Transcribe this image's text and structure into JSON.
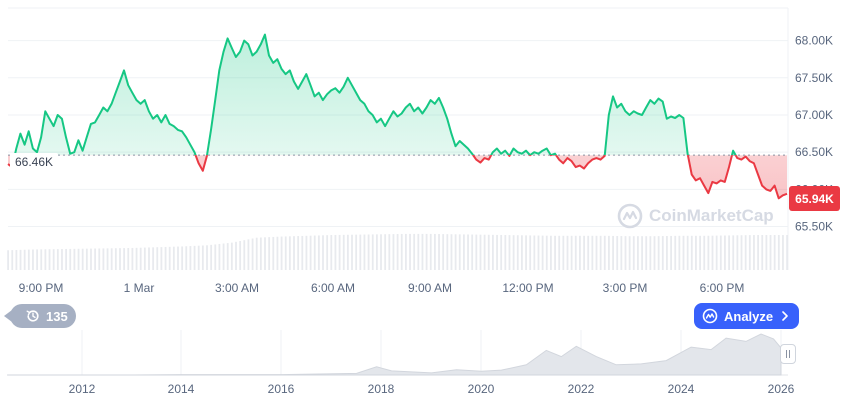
{
  "chart_data": {
    "type": "line",
    "x_tick_labels": [
      "9:00 PM",
      "1 Mar",
      "3:00 AM",
      "6:00 AM",
      "9:00 AM",
      "12:00 PM",
      "3:00 PM",
      "6:00 PM"
    ],
    "y_tick_labels": [
      "68.00K",
      "67.50K",
      "67.00K",
      "66.50K",
      "66.00K",
      "65.50K"
    ],
    "ylim": [
      65.4,
      68.25
    ],
    "reference_value": 66.46,
    "reference_label": "66.46K",
    "last_value_label": "65.94K",
    "colors": {
      "above": "#16c784",
      "below": "#ea3943",
      "volume": "#e8eaee",
      "grid": "#eff2f5"
    },
    "price": [
      [
        0,
        66.34
      ],
      [
        2,
        66.3
      ],
      [
        4,
        66.55
      ],
      [
        6,
        66.75
      ],
      [
        8,
        66.6
      ],
      [
        10,
        66.78
      ],
      [
        12,
        66.55
      ],
      [
        14,
        66.5
      ],
      [
        16,
        66.7
      ],
      [
        18,
        67.05
      ],
      [
        20,
        66.95
      ],
      [
        22,
        66.85
      ],
      [
        24,
        67.0
      ],
      [
        26,
        66.95
      ],
      [
        28,
        66.7
      ],
      [
        30,
        66.48
      ],
      [
        32,
        66.5
      ],
      [
        34,
        66.66
      ],
      [
        36,
        66.52
      ],
      [
        38,
        66.7
      ],
      [
        40,
        66.88
      ],
      [
        42,
        66.9
      ],
      [
        44,
        67.0
      ],
      [
        46,
        67.1
      ],
      [
        48,
        67.05
      ],
      [
        50,
        67.15
      ],
      [
        52,
        67.3
      ],
      [
        54,
        67.45
      ],
      [
        56,
        67.6
      ],
      [
        58,
        67.4
      ],
      [
        60,
        67.3
      ],
      [
        62,
        67.2
      ],
      [
        64,
        67.15
      ],
      [
        66,
        67.2
      ],
      [
        68,
        67.05
      ],
      [
        70,
        66.95
      ],
      [
        72,
        67.0
      ],
      [
        74,
        66.9
      ],
      [
        76,
        67.0
      ],
      [
        78,
        66.88
      ],
      [
        80,
        66.85
      ],
      [
        82,
        66.8
      ],
      [
        84,
        66.78
      ],
      [
        86,
        66.7
      ],
      [
        88,
        66.6
      ],
      [
        90,
        66.5
      ],
      [
        92,
        66.35
      ],
      [
        94,
        66.25
      ],
      [
        96,
        66.45
      ],
      [
        98,
        66.8
      ],
      [
        100,
        67.2
      ],
      [
        102,
        67.6
      ],
      [
        104,
        67.85
      ],
      [
        106,
        68.03
      ],
      [
        108,
        67.9
      ],
      [
        110,
        67.78
      ],
      [
        112,
        67.85
      ],
      [
        114,
        68.0
      ],
      [
        116,
        67.95
      ],
      [
        118,
        67.8
      ],
      [
        120,
        67.85
      ],
      [
        122,
        67.95
      ],
      [
        124,
        68.08
      ],
      [
        126,
        67.8
      ],
      [
        128,
        67.7
      ],
      [
        130,
        67.75
      ],
      [
        132,
        67.62
      ],
      [
        134,
        67.55
      ],
      [
        136,
        67.6
      ],
      [
        138,
        67.45
      ],
      [
        140,
        67.35
      ],
      [
        142,
        67.45
      ],
      [
        144,
        67.55
      ],
      [
        146,
        67.4
      ],
      [
        148,
        67.25
      ],
      [
        150,
        67.3
      ],
      [
        152,
        67.2
      ],
      [
        154,
        67.28
      ],
      [
        156,
        67.33
      ],
      [
        158,
        67.36
      ],
      [
        160,
        67.3
      ],
      [
        162,
        67.38
      ],
      [
        164,
        67.5
      ],
      [
        166,
        67.4
      ],
      [
        168,
        67.3
      ],
      [
        170,
        67.2
      ],
      [
        172,
        67.15
      ],
      [
        174,
        67.05
      ],
      [
        176,
        67.0
      ],
      [
        178,
        66.9
      ],
      [
        180,
        66.95
      ],
      [
        182,
        66.85
      ],
      [
        184,
        66.95
      ],
      [
        186,
        67.05
      ],
      [
        188,
        66.98
      ],
      [
        190,
        67.02
      ],
      [
        192,
        67.1
      ],
      [
        194,
        67.15
      ],
      [
        196,
        67.05
      ],
      [
        198,
        67.1
      ],
      [
        200,
        67.02
      ],
      [
        202,
        67.1
      ],
      [
        204,
        67.2
      ],
      [
        206,
        67.15
      ],
      [
        208,
        67.23
      ],
      [
        210,
        67.1
      ],
      [
        212,
        66.95
      ],
      [
        214,
        66.75
      ],
      [
        216,
        66.58
      ],
      [
        218,
        66.65
      ],
      [
        220,
        66.6
      ],
      [
        222,
        66.55
      ],
      [
        224,
        66.48
      ],
      [
        226,
        66.4
      ],
      [
        228,
        66.36
      ],
      [
        230,
        66.42
      ],
      [
        232,
        66.4
      ],
      [
        234,
        66.5
      ],
      [
        236,
        66.55
      ],
      [
        238,
        66.48
      ],
      [
        240,
        66.52
      ],
      [
        242,
        66.45
      ],
      [
        244,
        66.55
      ],
      [
        246,
        66.5
      ],
      [
        248,
        66.48
      ],
      [
        250,
        66.52
      ],
      [
        252,
        66.46
      ],
      [
        254,
        66.5
      ],
      [
        256,
        66.48
      ],
      [
        258,
        66.52
      ],
      [
        260,
        66.55
      ],
      [
        262,
        66.46
      ],
      [
        264,
        66.48
      ],
      [
        266,
        66.4
      ],
      [
        268,
        66.35
      ],
      [
        270,
        66.42
      ],
      [
        272,
        66.38
      ],
      [
        274,
        66.3
      ],
      [
        276,
        66.32
      ],
      [
        278,
        66.28
      ],
      [
        280,
        66.35
      ],
      [
        282,
        66.4
      ],
      [
        284,
        66.42
      ],
      [
        286,
        66.4
      ],
      [
        288,
        66.45
      ],
      [
        290,
        67.0
      ],
      [
        292,
        67.25
      ],
      [
        294,
        67.1
      ],
      [
        296,
        67.15
      ],
      [
        298,
        67.05
      ],
      [
        300,
        67.0
      ],
      [
        302,
        67.05
      ],
      [
        304,
        67.02
      ],
      [
        306,
        67.0
      ],
      [
        308,
        67.1
      ],
      [
        310,
        67.2
      ],
      [
        312,
        67.15
      ],
      [
        314,
        67.22
      ],
      [
        316,
        67.18
      ],
      [
        318,
        66.95
      ],
      [
        320,
        66.98
      ],
      [
        322,
        66.96
      ],
      [
        324,
        67.0
      ],
      [
        326,
        66.96
      ],
      [
        328,
        66.48
      ],
      [
        330,
        66.2
      ],
      [
        332,
        66.12
      ],
      [
        334,
        66.15
      ],
      [
        336,
        66.05
      ],
      [
        338,
        65.95
      ],
      [
        340,
        66.1
      ],
      [
        342,
        66.08
      ],
      [
        344,
        66.12
      ],
      [
        346,
        66.1
      ],
      [
        348,
        66.3
      ],
      [
        350,
        66.52
      ],
      [
        352,
        66.42
      ],
      [
        354,
        66.4
      ],
      [
        356,
        66.44
      ],
      [
        358,
        66.38
      ],
      [
        360,
        66.35
      ],
      [
        362,
        66.2
      ],
      [
        364,
        66.05
      ],
      [
        366,
        66.0
      ],
      [
        368,
        65.98
      ],
      [
        370,
        66.05
      ],
      [
        372,
        65.88
      ],
      [
        374,
        65.92
      ],
      [
        376,
        65.94
      ]
    ],
    "volume": [
      [
        0,
        0.52
      ],
      [
        12,
        0.54
      ],
      [
        24,
        0.55
      ],
      [
        36,
        0.56
      ],
      [
        48,
        0.57
      ],
      [
        60,
        0.58
      ],
      [
        72,
        0.6
      ],
      [
        84,
        0.62
      ],
      [
        96,
        0.65
      ],
      [
        108,
        0.72
      ],
      [
        120,
        0.85
      ],
      [
        132,
        0.88
      ],
      [
        144,
        0.9
      ],
      [
        156,
        0.92
      ],
      [
        168,
        0.93
      ],
      [
        180,
        0.94
      ],
      [
        192,
        0.95
      ],
      [
        204,
        0.95
      ],
      [
        216,
        0.94
      ],
      [
        228,
        0.93
      ],
      [
        240,
        0.92
      ],
      [
        252,
        0.91
      ],
      [
        264,
        0.9
      ],
      [
        276,
        0.9
      ],
      [
        288,
        0.9
      ],
      [
        300,
        0.89
      ],
      [
        312,
        0.89
      ],
      [
        324,
        0.9
      ],
      [
        336,
        0.9
      ],
      [
        348,
        0.91
      ],
      [
        360,
        0.92
      ],
      [
        376,
        0.92
      ]
    ],
    "navigator": {
      "x_tick_labels": [
        "2012",
        "2014",
        "2016",
        "2018",
        "2020",
        "2022",
        "2024",
        "2026"
      ],
      "series": [
        [
          2010.5,
          0.0
        ],
        [
          2013.0,
          0.0
        ],
        [
          2014.0,
          0.01
        ],
        [
          2016.0,
          0.01
        ],
        [
          2017.5,
          0.04
        ],
        [
          2017.9,
          0.2
        ],
        [
          2018.2,
          0.1
        ],
        [
          2019.0,
          0.05
        ],
        [
          2019.5,
          0.13
        ],
        [
          2020.0,
          0.09
        ],
        [
          2020.4,
          0.12
        ],
        [
          2020.9,
          0.25
        ],
        [
          2021.3,
          0.6
        ],
        [
          2021.6,
          0.45
        ],
        [
          2021.9,
          0.7
        ],
        [
          2022.3,
          0.45
        ],
        [
          2022.7,
          0.25
        ],
        [
          2023.2,
          0.27
        ],
        [
          2023.7,
          0.35
        ],
        [
          2024.2,
          0.68
        ],
        [
          2024.6,
          0.62
        ],
        [
          2024.9,
          0.9
        ],
        [
          2025.3,
          0.82
        ],
        [
          2025.6,
          1.0
        ],
        [
          2025.85,
          0.88
        ],
        [
          2026.0,
          0.66
        ]
      ]
    }
  },
  "ui": {
    "watermark": "CoinMarketCap",
    "history_count": "135",
    "analyze_label": "Analyze"
  }
}
